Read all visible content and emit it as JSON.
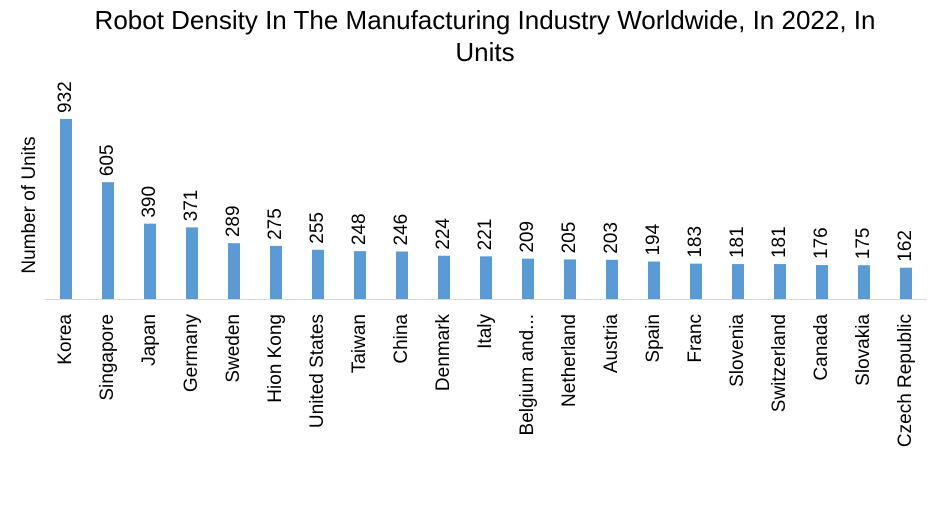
{
  "chart_data": {
    "type": "bar",
    "title": "Robot Density In The Manufacturing Industry Worldwide, In 2022, In Units",
    "y_label": "Number of Units",
    "categories": [
      "Korea",
      "Singapore",
      "Japan",
      "Germany",
      "Sweden",
      "Hion Kong",
      "United States",
      "Taiwan",
      "China",
      "Denmark",
      "Italy",
      "Belgium and...",
      "Netherland",
      "Austria",
      "Spain",
      "Franc",
      "Slovenia",
      "Switzerland",
      "Canada",
      "Slovakia",
      "Czech Republic"
    ],
    "values": [
      932,
      605,
      390,
      371,
      289,
      275,
      255,
      248,
      246,
      224,
      221,
      209,
      205,
      203,
      194,
      183,
      181,
      181,
      176,
      175,
      162
    ],
    "color": "#5b9bd5"
  }
}
